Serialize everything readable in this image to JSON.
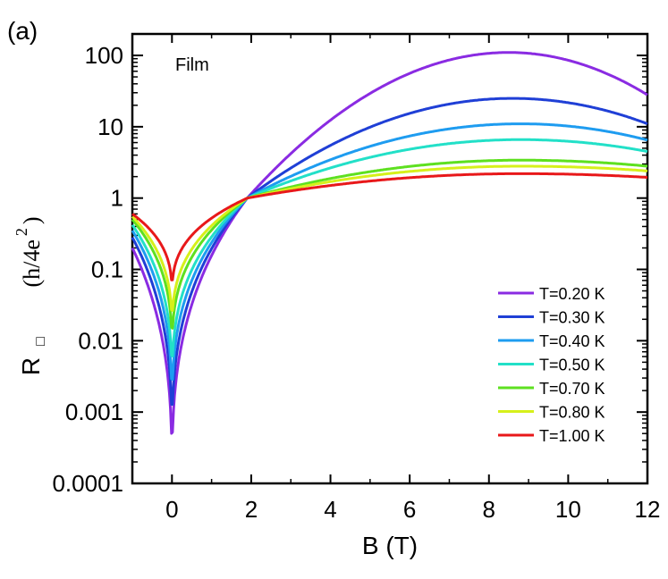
{
  "chart_data": {
    "type": "line",
    "panel_label": "(a)",
    "annotation": "Film",
    "xlabel": "B (T)",
    "ylabel": {
      "symbol": "R",
      "subscript": "□",
      "units_open": "(h/4e",
      "units_sup": "2",
      "units_close": ")"
    },
    "y_scale": "log",
    "xlim": [
      -1,
      12
    ],
    "ylim": [
      0.0001,
      200
    ],
    "x_ticks": [
      0,
      2,
      4,
      6,
      8,
      10,
      12
    ],
    "x_tick_labels": [
      "0",
      "2",
      "4",
      "6",
      "8",
      "10",
      "12"
    ],
    "y_ticks": [
      0.0001,
      0.001,
      0.01,
      0.1,
      1,
      10,
      100
    ],
    "y_tick_labels": [
      "0.0001",
      "0.001",
      "0.01",
      "0.1",
      "1",
      "10",
      "100"
    ],
    "legend_position": "bottom-right",
    "grid": false,
    "series": [
      {
        "name": "T=0.20 K",
        "color": "#8a2be2",
        "left_value": 0.2,
        "min_value": 0.0001,
        "peak_x": 8.5,
        "peak_value": 110,
        "end_value": 28
      },
      {
        "name": "T=0.30 K",
        "color": "#1f3fd6",
        "left_value": 0.28,
        "min_value": 0.0003,
        "peak_x": 8.6,
        "peak_value": 25,
        "end_value": 11
      },
      {
        "name": "T=0.40 K",
        "color": "#1e9cf0",
        "left_value": 0.35,
        "min_value": 0.0008,
        "peak_x": 8.8,
        "peak_value": 11,
        "end_value": 6.5
      },
      {
        "name": "T=0.50 K",
        "color": "#22e0c8",
        "left_value": 0.42,
        "min_value": 0.002,
        "peak_x": 8.8,
        "peak_value": 6.6,
        "end_value": 4.5
      },
      {
        "name": "T=0.70 K",
        "color": "#5ee020",
        "left_value": 0.5,
        "min_value": 0.006,
        "peak_x": 8.8,
        "peak_value": 3.4,
        "end_value": 2.8
      },
      {
        "name": "T=0.80 K",
        "color": "#d6f01a",
        "left_value": 0.55,
        "min_value": 0.012,
        "peak_x": 8.8,
        "peak_value": 2.8,
        "end_value": 2.4
      },
      {
        "name": "T=1.00 K",
        "color": "#e8181a",
        "left_value": 0.6,
        "min_value": 0.04,
        "peak_x": 8.8,
        "peak_value": 2.2,
        "end_value": 1.95
      }
    ],
    "crossing_point": {
      "x": 1.9,
      "y": 1.0
    }
  }
}
